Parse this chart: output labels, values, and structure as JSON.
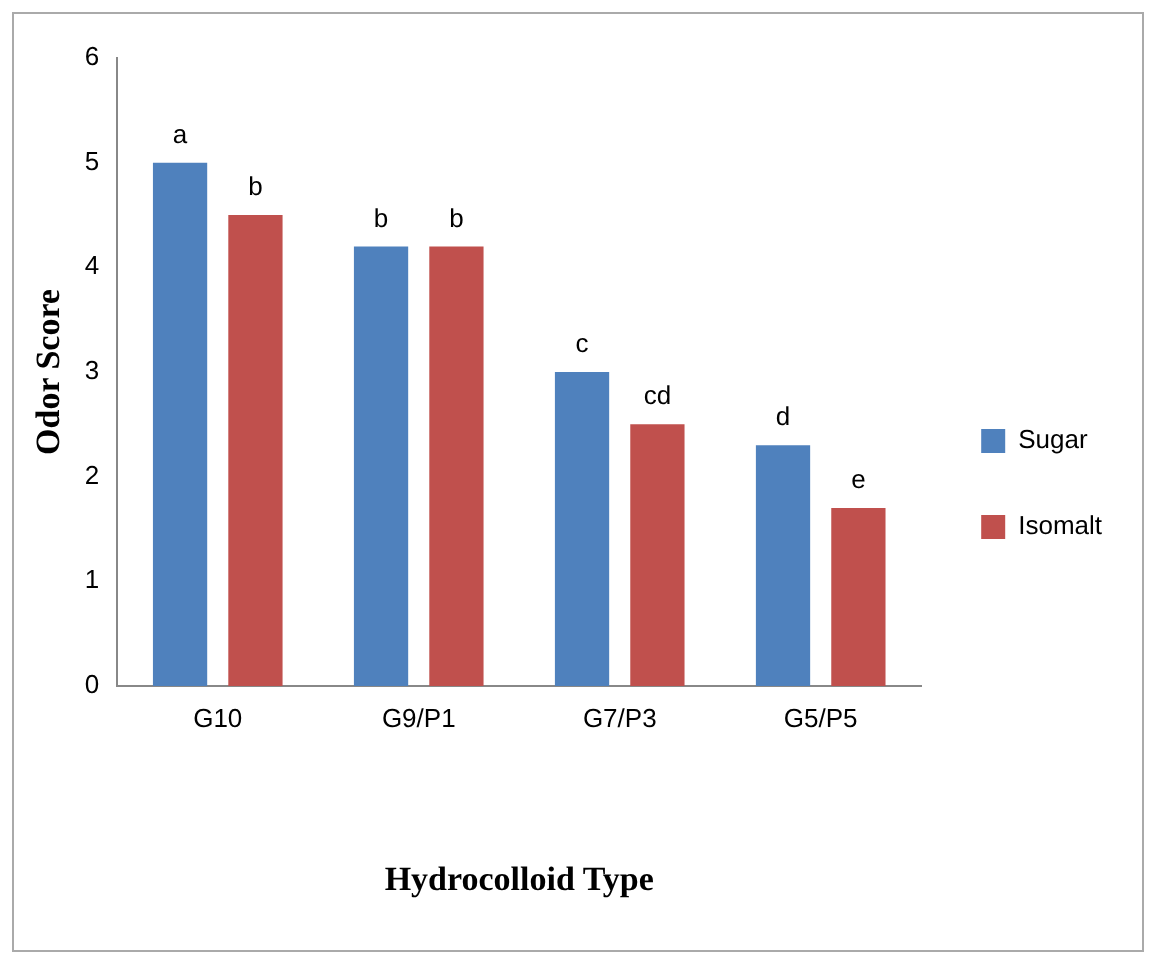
{
  "chart_data": {
    "type": "bar",
    "xlabel": "Hydrocolloid Type",
    "ylabel": "Odor Score",
    "categories": [
      "G10",
      "G9/P1",
      "G7/P3",
      "G5/P5"
    ],
    "series": [
      {
        "name": "Sugar",
        "color": "#4f81bd",
        "values": [
          5.0,
          4.2,
          3.0,
          2.3
        ],
        "value_labels": [
          "a",
          "b",
          "c",
          "d"
        ]
      },
      {
        "name": "Isomalt",
        "color": "#c0504d",
        "values": [
          4.5,
          4.2,
          2.5,
          1.7
        ],
        "value_labels": [
          "b",
          "b",
          "cd",
          "e"
        ]
      }
    ],
    "ylim": [
      0,
      6
    ],
    "yticks": [
      0,
      1,
      2,
      3,
      4,
      5,
      6
    ],
    "grid": false,
    "legend": "right"
  }
}
